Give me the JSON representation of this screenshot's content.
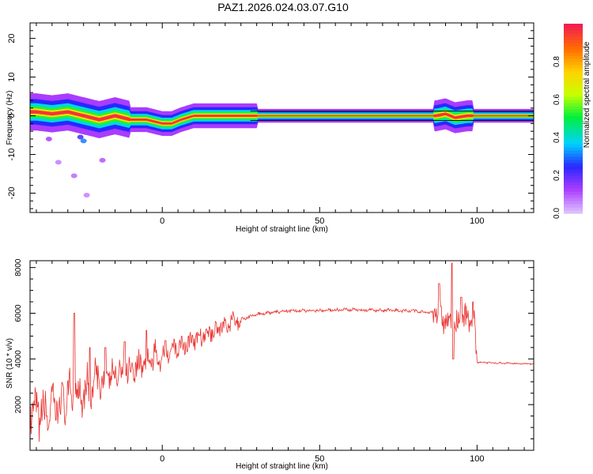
{
  "title": "PAZ1.2026.024.03.07.G10",
  "chart_data": [
    {
      "type": "heatmap",
      "name": "spectrogram",
      "xlabel": "Height of straight line (km)",
      "ylabel": "Frequency (Hz)",
      "xlim": [
        -42,
        118
      ],
      "ylim": [
        -25,
        24
      ],
      "xticks": [
        0,
        50,
        100
      ],
      "yticks": [
        -20,
        -10,
        0,
        10,
        20
      ],
      "colorbar": {
        "label": "Normalized spectral amplitude",
        "range": [
          0,
          1
        ],
        "ticks": [
          "0.0",
          "0.2",
          "0.4",
          "0.6",
          "0.8"
        ],
        "colormap": "rainbow",
        "placement": "right"
      },
      "ridge": [
        {
          "x": -40,
          "y": 1.0
        },
        {
          "x": -35,
          "y": 0.5
        },
        {
          "x": -30,
          "y": 1.0
        },
        {
          "x": -25,
          "y": 0.0
        },
        {
          "x": -20,
          "y": -1.0
        },
        {
          "x": -15,
          "y": 0.0
        },
        {
          "x": -10,
          "y": -1.0
        },
        {
          "x": -5,
          "y": -1.0
        },
        {
          "x": 0,
          "y": -2.0
        },
        {
          "x": 3,
          "y": -2.0
        },
        {
          "x": 6,
          "y": -1.0
        },
        {
          "x": 10,
          "y": 0.0
        },
        {
          "x": 20,
          "y": 0.0
        },
        {
          "x": 30,
          "y": 0.0
        },
        {
          "x": 87,
          "y": 0.0
        },
        {
          "x": 90,
          "y": 0.5
        },
        {
          "x": 93,
          "y": -0.5
        },
        {
          "x": 97,
          "y": 0.0
        },
        {
          "x": 118,
          "y": 0.0
        }
      ]
    },
    {
      "type": "line",
      "name": "snr",
      "xlabel": "Height of straight line (km)",
      "ylabel": "SNR (10 * v/v)",
      "xlim": [
        -42,
        118
      ],
      "ylim": [
        0,
        8300
      ],
      "xticks": [
        0,
        50,
        100
      ],
      "yticks": [
        2000,
        4000,
        6000,
        8000
      ],
      "color": "#e8332f",
      "envelope": [
        {
          "x": -42,
          "y": 1500
        },
        {
          "x": -35,
          "y": 1700
        },
        {
          "x": -28,
          "y": 2500
        },
        {
          "x": -20,
          "y": 3000
        },
        {
          "x": -10,
          "y": 3600
        },
        {
          "x": 0,
          "y": 4200
        },
        {
          "x": 10,
          "y": 4800
        },
        {
          "x": 20,
          "y": 5500
        },
        {
          "x": 30,
          "y": 5950
        },
        {
          "x": 40,
          "y": 6100
        },
        {
          "x": 60,
          "y": 6150
        },
        {
          "x": 80,
          "y": 6100
        },
        {
          "x": 88,
          "y": 6000
        },
        {
          "x": 93,
          "y": 5400
        },
        {
          "x": 99,
          "y": 5900
        },
        {
          "x": 100,
          "y": 3850
        },
        {
          "x": 118,
          "y": 3780
        }
      ],
      "spikes": [
        {
          "x": -28,
          "y": 6000
        },
        {
          "x": -23,
          "y": 4500
        },
        {
          "x": -18,
          "y": 4500
        },
        {
          "x": -12,
          "y": 4750
        },
        {
          "x": -5,
          "y": 5250
        },
        {
          "x": 1,
          "y": 4800
        },
        {
          "x": 14,
          "y": 5300
        },
        {
          "x": 88,
          "y": 7300
        },
        {
          "x": 92,
          "y": 8200
        },
        {
          "x": 95,
          "y": 6700
        },
        {
          "x": 92.5,
          "y": 4000
        }
      ]
    }
  ]
}
